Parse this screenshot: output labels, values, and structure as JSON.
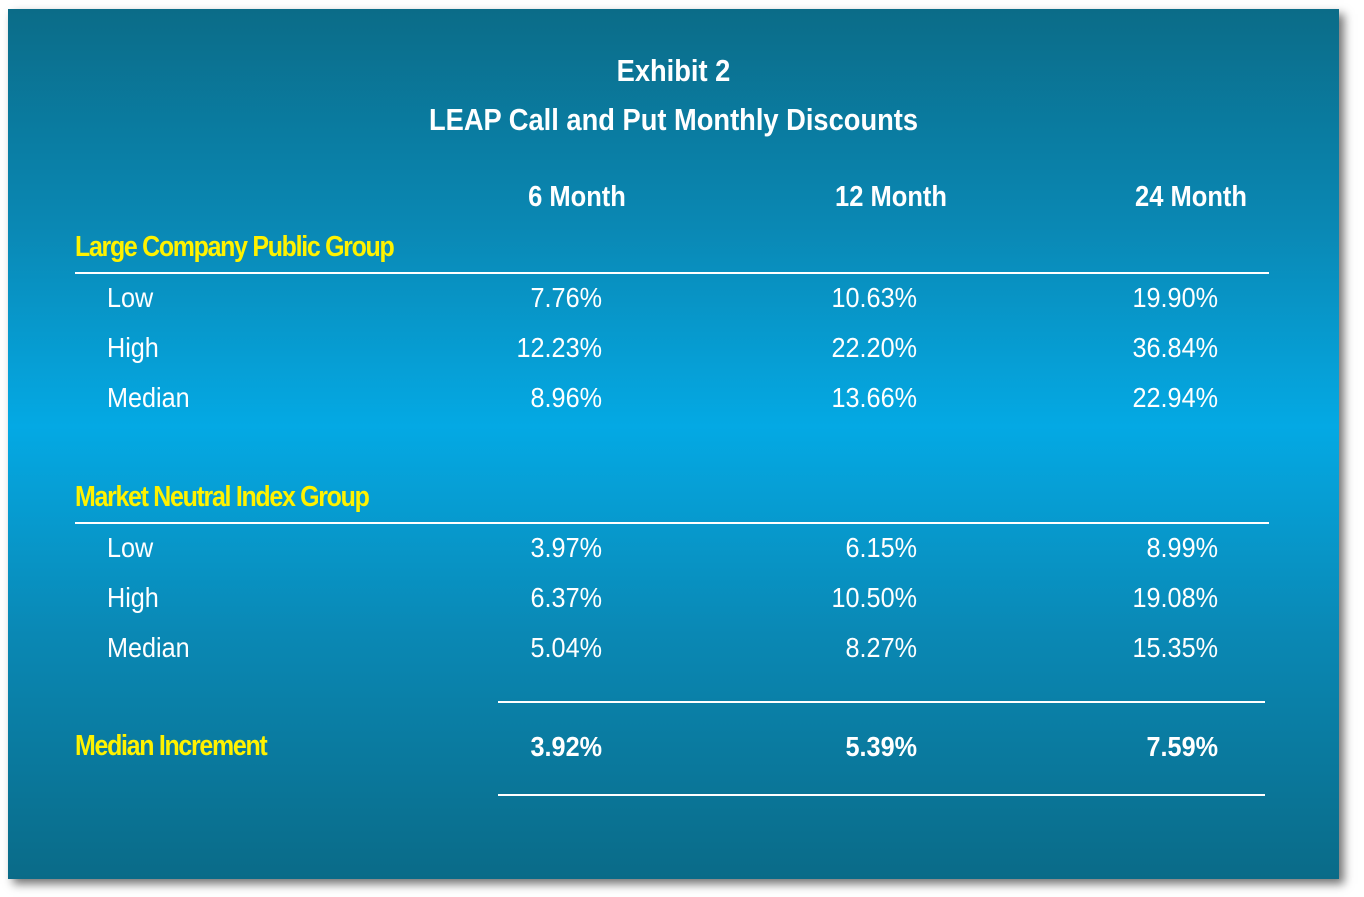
{
  "title": "Exhibit 2",
  "subtitle": "LEAP Call and Put Monthly Discounts",
  "columns": [
    "6 Month",
    "12 Month",
    "24 Month"
  ],
  "groups": [
    {
      "name": "Large Company Public Group",
      "rows": [
        {
          "label": "Low",
          "values": [
            "7.76%",
            "10.63%",
            "19.90%"
          ]
        },
        {
          "label": "High",
          "values": [
            "12.23%",
            "22.20%",
            "36.84%"
          ]
        },
        {
          "label": "Median",
          "values": [
            "8.96%",
            "13.66%",
            "22.94%"
          ]
        }
      ]
    },
    {
      "name": "Market Neutral Index Group",
      "rows": [
        {
          "label": "Low",
          "values": [
            "3.97%",
            "6.15%",
            "8.99%"
          ]
        },
        {
          "label": "High",
          "values": [
            "6.37%",
            "10.50%",
            "19.08%"
          ]
        },
        {
          "label": "Median",
          "values": [
            "5.04%",
            "8.27%",
            "15.35%"
          ]
        }
      ]
    }
  ],
  "summary": {
    "label": "Median Increment",
    "values": [
      "3.92%",
      "5.39%",
      "7.59%"
    ]
  },
  "colors": {
    "heading_white": "#ffffff",
    "group_yellow": "#fff200",
    "background_light": "#04a9e4",
    "background_dark": "#0b6c88"
  }
}
